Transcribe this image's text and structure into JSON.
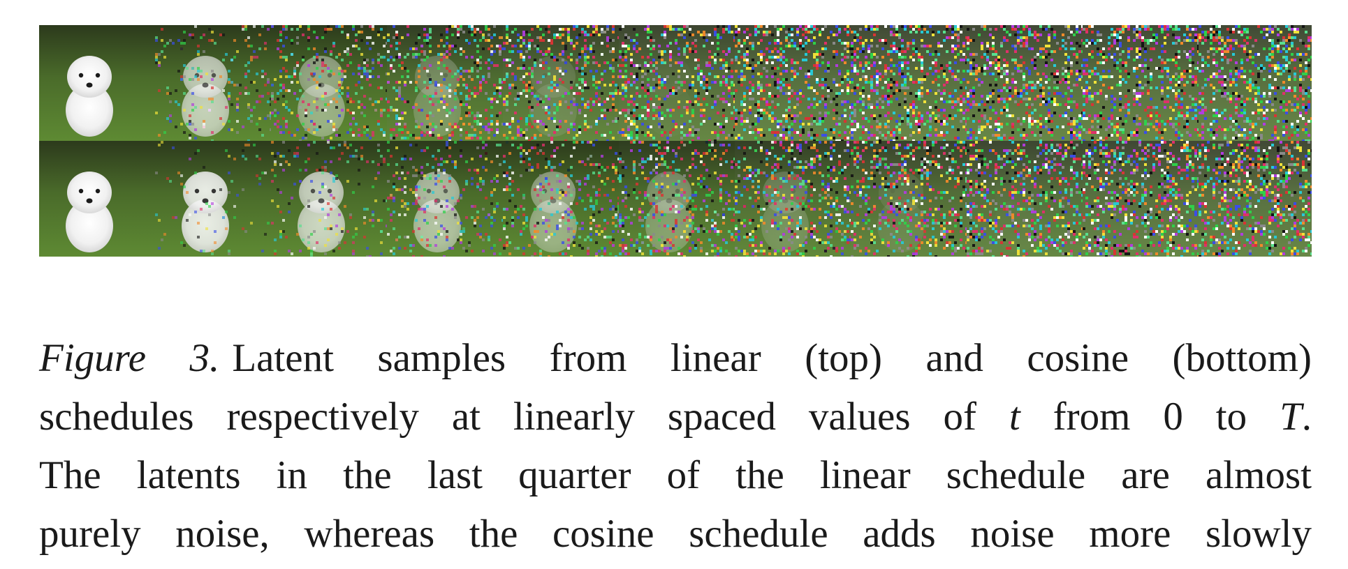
{
  "figure": {
    "rows": [
      {
        "schedule": "linear",
        "frames": [
          0.0,
          0.32,
          0.55,
          0.72,
          0.82,
          0.92,
          0.97,
          1.0,
          1.0,
          1.0,
          1.0
        ]
      },
      {
        "schedule": "cosine",
        "frames": [
          0.0,
          0.12,
          0.28,
          0.42,
          0.55,
          0.66,
          0.76,
          0.85,
          0.93,
          0.98,
          1.0
        ]
      }
    ],
    "subject": "white puppy on grass"
  },
  "caption": {
    "label": "Figure 3.",
    "line1_rest": "Latent samples from linear (top) and cosine (bottom)",
    "line2_a": "schedules respectively at linearly spaced values of",
    "line2_t": "t",
    "line2_b": "from 0 to",
    "line2_T": "T",
    "line2_end": ".",
    "line3": "The latents in the last quarter of the linear schedule are almost",
    "line4": "purely noise, whereas the cosine schedule adds noise more slowly"
  }
}
